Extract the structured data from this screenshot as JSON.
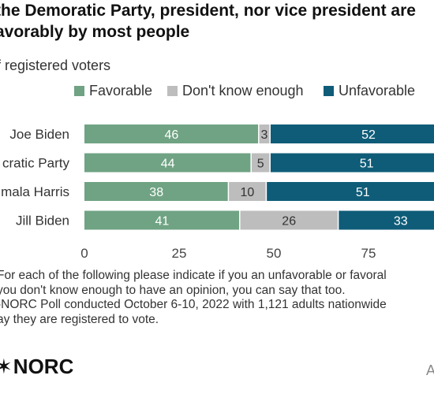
{
  "title": {
    "line1": "the Demoratic Party, president, nor vice president are",
    "line2": "avorably by most people"
  },
  "subtitle": "f registered voters",
  "legend": [
    {
      "label": "Favorable",
      "color": "#6fa383"
    },
    {
      "label": "Don't know enough",
      "color": "#bdbdbd"
    },
    {
      "label": "Unfavorable",
      "color": "#0f5c78"
    }
  ],
  "chart_data": {
    "type": "bar",
    "orientation": "horizontal",
    "stacked": true,
    "categories": [
      "Joe Biden",
      "cratic Party",
      "mala Harris",
      "Jill Biden"
    ],
    "series": [
      {
        "name": "Favorable",
        "color": "#6fa383",
        "values": [
          46,
          44,
          38,
          41
        ]
      },
      {
        "name": "Don't know enough",
        "color": "#bdbdbd",
        "values": [
          3,
          5,
          10,
          26
        ]
      },
      {
        "name": "Unfavorable",
        "color": "#0f5c78",
        "values": [
          52,
          51,
          51,
          33
        ]
      }
    ],
    "xticks": [
      0,
      25,
      50,
      75
    ],
    "xlim": [
      0,
      100
    ],
    "legend_position": "top",
    "grid": false
  },
  "notes": [
    "For each of the following please indicate if you an unfavorable or favoral",
    "you don't know enough to have an opinion, you can say that too.",
    "-NORC Poll conducted October 6-10, 2022 with 1,121 adults nationwide",
    "ay they are registered to vote."
  ],
  "logo": {
    "text": "NORC",
    "mark": "✶"
  },
  "corner_letter": "A"
}
